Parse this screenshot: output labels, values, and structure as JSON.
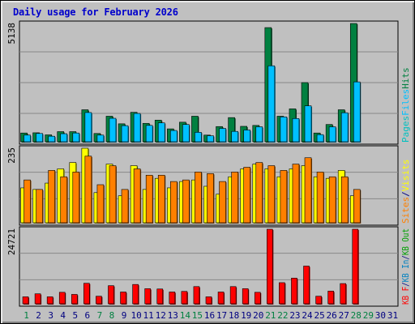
{
  "chart_data": {
    "title": "Daily usage for February 2026",
    "type": "bar",
    "categories": [
      "1",
      "2",
      "3",
      "4",
      "5",
      "6",
      "7",
      "8",
      "9",
      "10",
      "11",
      "12",
      "13",
      "14",
      "15",
      "16",
      "17",
      "18",
      "19",
      "20",
      "21",
      "22",
      "23",
      "24",
      "25",
      "26",
      "27",
      "28",
      "29",
      "30",
      "31"
    ],
    "weekend_days": [
      "1",
      "7",
      "8",
      "14",
      "15",
      "21",
      "22",
      "28",
      "29"
    ],
    "colors": {
      "hits": "#008040",
      "files": "#00c0ff",
      "pages": "#00c0c0",
      "visits": "#ffff00",
      "sites": "#ff8000",
      "kb_in": "#0080c0",
      "kb_out": "#00a000",
      "kb_f": "#ff0000",
      "weekend_label": "#008040",
      "weekday_label": "#000080",
      "title": "#0000cc",
      "panel_bg": "#c0c0c0",
      "plot_bg": "#c0c0c0"
    },
    "panels": [
      {
        "name": "hits_files",
        "ymax_label": "5138",
        "ylim": [
          0,
          5138
        ],
        "series": [
          {
            "name": "Hits",
            "color": "#008040",
            "values": [
              380,
              390,
              300,
              440,
              440,
              1390,
              360,
              1110,
              780,
              1280,
              800,
              940,
              560,
              850,
              1110,
              290,
              660,
              1050,
              670,
              710,
              4960,
              1110,
              1430,
              2570,
              380,
              750,
              1390,
              5138,
              null,
              null,
              null
            ]
          },
          {
            "name": "Files",
            "color": "#00c0ff",
            "values": [
              290,
              360,
              240,
              350,
              380,
              1270,
              290,
              1020,
              700,
              1230,
              710,
              820,
              490,
              750,
              410,
              260,
              580,
              450,
              510,
              650,
              3300,
              1080,
              1010,
              1560,
              310,
              650,
              1260,
              2600,
              null,
              null,
              null
            ]
          }
        ],
        "right_labels": [
          {
            "text": "Pages",
            "color": "#00c0c0"
          },
          {
            "text": "Files",
            "color": "#00c0ff"
          },
          {
            "text": "Hits",
            "color": "#008040"
          }
        ]
      },
      {
        "name": "visits_sites",
        "ymax_label": "235",
        "ylim": [
          0,
          235
        ],
        "series": [
          {
            "name": "Visits",
            "color": "#ffff00",
            "values": [
              110,
              105,
              125,
              170,
              190,
              235,
              95,
              185,
              85,
              180,
              105,
              140,
              110,
              130,
              135,
              115,
              90,
              145,
              170,
              185,
              170,
              145,
              170,
              180,
              145,
              140,
              165,
              85,
              null,
              null,
              null
            ]
          },
          {
            "name": "Sites",
            "color": "#ff8000",
            "values": [
              135,
              105,
              165,
              145,
              160,
              210,
              120,
              180,
              105,
              170,
              150,
              150,
              130,
              135,
              160,
              155,
              130,
              160,
              175,
              190,
              180,
              165,
              185,
              205,
              160,
              145,
              145,
              105,
              null,
              null,
              null
            ]
          }
        ],
        "right_labels": [
          {
            "text": "Sites",
            "color": "#ff8000"
          },
          {
            "text": "/",
            "color": "#000080"
          },
          {
            "text": "Visits",
            "color": "#ffff00"
          }
        ]
      },
      {
        "name": "kbytes",
        "ymax_label": "24721",
        "ylim": [
          0,
          24721
        ],
        "series": [
          {
            "name": "KB F",
            "color": "#ff0000",
            "values": [
              2300,
              3300,
              2300,
              3800,
              3100,
              6800,
              2500,
              6000,
              3900,
              6400,
              5000,
              4900,
              3900,
              4100,
              5700,
              2300,
              3900,
              5700,
              5000,
              3800,
              24721,
              7000,
              8500,
              12500,
              2500,
              4200,
              6700,
              24721,
              null,
              null,
              null
            ]
          }
        ],
        "right_labels": [
          {
            "text": "KB F",
            "color": "#ff0000"
          },
          {
            "text": "/",
            "color": "#000080"
          },
          {
            "text": "KB In",
            "color": "#0080c0"
          },
          {
            "text": "/",
            "color": "#000080"
          },
          {
            "text": "KB Out",
            "color": "#00a000"
          }
        ]
      }
    ]
  }
}
